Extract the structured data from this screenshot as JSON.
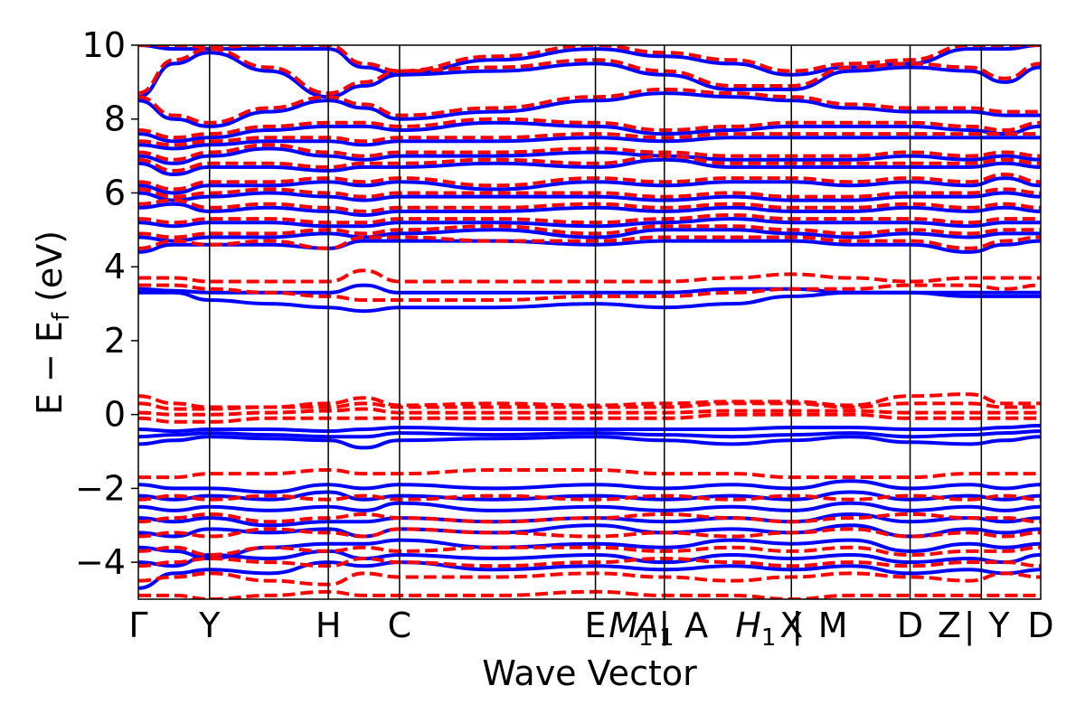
{
  "chart_data": {
    "type": "line",
    "title": "",
    "xlabel": "Wave Vector",
    "ylabel": "E − E",
    "ylabel_sub": "f",
    "ylabel_unit": " (eV)",
    "ylim": [
      -5,
      10
    ],
    "yticks": [
      -4,
      -2,
      0,
      2,
      4,
      6,
      8,
      10
    ],
    "ytick_labels": [
      "−4",
      "−2",
      "0",
      "2",
      "4",
      "6",
      "8",
      "10"
    ],
    "k_path_positions": [
      0,
      0.6,
      1.6,
      2.2,
      3.85,
      4.43,
      5.5,
      6.5,
      7.1,
      7.6
    ],
    "k_labels": [
      {
        "x": 0,
        "label": "Γ"
      },
      {
        "x": 0.6,
        "label": "Y"
      },
      {
        "x": 1.6,
        "label": "H"
      },
      {
        "x": 2.2,
        "label": "C"
      },
      {
        "x": 3.85,
        "label": "E"
      },
      {
        "x": 4.15,
        "label": "M",
        "sub": "1",
        "italic": true
      },
      {
        "x": 4.35,
        "label": "A",
        "sub": "1",
        "italic": true
      },
      {
        "x": 4.43,
        "label": "|"
      },
      {
        "x": 4.7,
        "label": "A"
      },
      {
        "x": 5.2,
        "label": "H",
        "sub": "1",
        "italic": true
      },
      {
        "x": 5.5,
        "label": "X"
      },
      {
        "x": 5.55,
        "label": "|"
      },
      {
        "x": 5.85,
        "label": "M"
      },
      {
        "x": 6.5,
        "label": "D"
      },
      {
        "x": 6.83,
        "label": "Z"
      },
      {
        "x": 7.0,
        "label": "|"
      },
      {
        "x": 7.25,
        "label": "Y"
      },
      {
        "x": 7.6,
        "label": "D"
      }
    ],
    "xlim": [
      0,
      7.6
    ],
    "series": [
      {
        "style": "solid",
        "color": "#0000ff",
        "bands": [
          [
            -4.7,
            -4.3,
            -4.2,
            -4.3,
            -4.0,
            -4.1,
            -4.0,
            -4.2,
            -4.1,
            -4.2,
            -4.1,
            -4.2,
            -4.1,
            -4.3,
            -4.2,
            -4.3,
            -4.2
          ],
          [
            -4.0,
            -4.1,
            -3.8,
            -3.9,
            -3.7,
            -3.9,
            -3.8,
            -3.9,
            -3.8,
            -4.0,
            -3.8,
            -3.9,
            -3.8,
            -4.0,
            -3.9,
            -4.0,
            -3.8
          ],
          [
            -3.6,
            -3.7,
            -3.9,
            -3.6,
            -3.5,
            -3.5,
            -3.4,
            -3.6,
            -3.5,
            -3.6,
            -3.4,
            -3.5,
            -3.4,
            -3.7,
            -3.5,
            -3.6,
            -3.5
          ],
          [
            -3.2,
            -3.3,
            -3.1,
            -3.2,
            -3.1,
            -3.3,
            -3.1,
            -3.2,
            -3.0,
            -3.2,
            -3.1,
            -3.2,
            -3.0,
            -3.3,
            -3.1,
            -3.2,
            -3.1
          ],
          [
            -2.8,
            -2.9,
            -2.8,
            -3.0,
            -2.9,
            -2.9,
            -2.8,
            -2.9,
            -2.8,
            -2.9,
            -2.8,
            -2.9,
            -2.7,
            -2.9,
            -2.8,
            -2.9,
            -2.8
          ],
          [
            -2.5,
            -2.6,
            -2.5,
            -2.6,
            -2.5,
            -2.6,
            -2.4,
            -2.6,
            -2.5,
            -2.6,
            -2.5,
            -2.6,
            -2.4,
            -2.6,
            -2.5,
            -2.6,
            -2.5
          ],
          [
            -2.2,
            -2.3,
            -2.2,
            -2.3,
            -2.1,
            -2.3,
            -2.2,
            -2.3,
            -2.2,
            -2.3,
            -2.2,
            -2.3,
            -2.1,
            -2.3,
            -2.2,
            -2.3,
            -2.2
          ],
          [
            -1.9,
            -2.0,
            -2.0,
            -2.1,
            -1.9,
            -2.0,
            -1.9,
            -2.0,
            -1.9,
            -2.0,
            -1.9,
            -2.0,
            -1.8,
            -2.0,
            -1.9,
            -2.0,
            -1.9
          ],
          [
            -0.8,
            -0.7,
            -0.6,
            -0.65,
            -0.7,
            -0.9,
            -0.7,
            -0.65,
            -0.6,
            -0.7,
            -0.8,
            -0.7,
            -0.6,
            -0.75,
            -0.8,
            -0.7,
            -0.6
          ],
          [
            -0.6,
            -0.55,
            -0.5,
            -0.55,
            -0.6,
            -0.6,
            -0.5,
            -0.55,
            -0.5,
            -0.55,
            -0.6,
            -0.55,
            -0.5,
            -0.6,
            -0.55,
            -0.5,
            -0.45
          ],
          [
            -0.4,
            -0.45,
            -0.4,
            -0.4,
            -0.45,
            -0.4,
            -0.35,
            -0.4,
            -0.4,
            -0.4,
            -0.4,
            -0.35,
            -0.35,
            -0.4,
            -0.4,
            -0.35,
            -0.3
          ],
          [
            3.3,
            3.3,
            3.1,
            3.0,
            2.9,
            2.8,
            2.9,
            2.9,
            3.0,
            2.9,
            3.0,
            3.2,
            3.3,
            3.3,
            3.2,
            3.2,
            3.2
          ],
          [
            3.4,
            3.35,
            3.3,
            3.3,
            3.3,
            3.5,
            3.3,
            3.3,
            3.3,
            3.3,
            3.4,
            3.4,
            3.3,
            3.3,
            3.3,
            3.3,
            3.3
          ],
          [
            4.4,
            4.6,
            4.6,
            4.6,
            4.5,
            4.7,
            4.7,
            4.7,
            4.6,
            4.7,
            4.7,
            4.7,
            4.6,
            4.6,
            4.4,
            4.6,
            4.7
          ],
          [
            4.8,
            4.7,
            4.8,
            4.8,
            4.9,
            4.8,
            4.9,
            5.0,
            4.8,
            5.0,
            5.0,
            4.9,
            4.8,
            4.9,
            4.8,
            4.9,
            4.9
          ],
          [
            5.2,
            5.1,
            5.2,
            5.2,
            5.1,
            5.1,
            5.2,
            5.2,
            5.1,
            5.2,
            5.3,
            5.2,
            5.2,
            5.2,
            5.1,
            5.2,
            5.2
          ],
          [
            5.6,
            5.7,
            5.5,
            5.6,
            5.5,
            5.4,
            5.5,
            5.5,
            5.6,
            5.5,
            5.6,
            5.5,
            5.5,
            5.6,
            5.5,
            5.6,
            5.5
          ],
          [
            6.0,
            5.8,
            5.9,
            6.0,
            5.9,
            5.8,
            5.9,
            5.9,
            5.9,
            5.8,
            5.9,
            5.8,
            5.8,
            5.9,
            5.9,
            6.0,
            5.9
          ],
          [
            6.2,
            6.0,
            6.2,
            6.2,
            6.3,
            6.2,
            6.3,
            6.1,
            6.3,
            6.2,
            6.3,
            6.3,
            6.2,
            6.3,
            6.2,
            6.4,
            6.2
          ],
          [
            6.8,
            6.5,
            6.7,
            6.7,
            6.6,
            6.7,
            6.7,
            6.8,
            6.7,
            6.9,
            6.7,
            6.7,
            6.7,
            6.7,
            6.7,
            6.8,
            6.7
          ],
          [
            7.0,
            6.8,
            7.0,
            7.2,
            7.0,
            6.9,
            7.0,
            7.0,
            7.1,
            7.0,
            6.9,
            6.9,
            6.9,
            7.0,
            6.9,
            7.0,
            6.9
          ],
          [
            7.3,
            7.2,
            7.3,
            7.4,
            7.4,
            7.3,
            7.4,
            7.4,
            7.5,
            7.4,
            7.5,
            7.5,
            7.5,
            7.5,
            7.5,
            7.5,
            7.5
          ],
          [
            7.6,
            7.4,
            7.5,
            7.7,
            7.8,
            7.8,
            7.7,
            7.9,
            7.8,
            7.6,
            7.7,
            7.8,
            7.8,
            7.8,
            7.7,
            7.6,
            7.8
          ],
          [
            8.5,
            8.0,
            7.8,
            8.2,
            8.5,
            8.3,
            8.0,
            8.2,
            8.5,
            8.7,
            8.6,
            8.5,
            8.3,
            8.2,
            8.2,
            8.1,
            8.1
          ],
          [
            8.6,
            9.5,
            9.8,
            9.3,
            8.6,
            8.9,
            9.2,
            9.3,
            9.5,
            9.2,
            8.8,
            8.8,
            9.3,
            9.4,
            9.3,
            9.0,
            9.4
          ],
          [
            10.0,
            9.9,
            9.9,
            9.9,
            9.9,
            9.4,
            9.2,
            9.6,
            9.9,
            9.7,
            9.5,
            9.2,
            9.4,
            9.5,
            9.9,
            9.9,
            10.0
          ]
        ]
      },
      {
        "style": "dashed",
        "color": "#ff0000",
        "bands": [
          [
            -4.9,
            -4.9,
            -5.0,
            -4.9,
            -4.8,
            -4.9,
            -4.9,
            -4.9,
            -4.8,
            -4.9,
            -4.9,
            -5.0,
            -4.9,
            -4.9,
            -4.9,
            -4.9,
            -4.9
          ],
          [
            -4.5,
            -4.4,
            -4.3,
            -4.5,
            -4.6,
            -4.3,
            -4.4,
            -4.4,
            -4.3,
            -4.4,
            -4.5,
            -4.4,
            -4.3,
            -4.4,
            -4.5,
            -4.3,
            -4.4
          ],
          [
            -4.1,
            -4.0,
            -3.9,
            -4.0,
            -4.1,
            -3.9,
            -4.0,
            -4.1,
            -4.0,
            -3.9,
            -4.0,
            -4.1,
            -4.0,
            -4.1,
            -4.0,
            -4.0,
            -4.1
          ],
          [
            -3.7,
            -3.6,
            -3.8,
            -3.6,
            -3.7,
            -3.6,
            -3.7,
            -3.6,
            -3.6,
            -3.7,
            -3.6,
            -3.7,
            -3.6,
            -3.8,
            -3.7,
            -3.7,
            -3.6
          ],
          [
            -3.3,
            -3.2,
            -3.3,
            -3.1,
            -3.2,
            -3.3,
            -3.1,
            -3.2,
            -3.3,
            -3.2,
            -3.3,
            -3.2,
            -3.1,
            -3.3,
            -3.2,
            -3.3,
            -3.2
          ],
          [
            -2.9,
            -2.8,
            -2.7,
            -2.9,
            -2.8,
            -2.7,
            -2.8,
            -2.9,
            -2.8,
            -2.7,
            -2.8,
            -2.9,
            -2.8,
            -2.7,
            -2.8,
            -2.8,
            -2.9
          ],
          [
            -2.3,
            -2.2,
            -2.3,
            -2.2,
            -2.3,
            -2.2,
            -2.3,
            -2.2,
            -2.3,
            -2.2,
            -2.3,
            -2.2,
            -2.3,
            -2.2,
            -2.3,
            -2.2,
            -2.3
          ],
          [
            -1.7,
            -1.7,
            -1.6,
            -1.6,
            -1.5,
            -1.6,
            -1.6,
            -1.5,
            -1.5,
            -1.6,
            -1.6,
            -1.7,
            -1.7,
            -1.7,
            -1.6,
            -1.6,
            -1.6
          ],
          [
            -0.1,
            -0.2,
            -0.2,
            -0.1,
            -0.1,
            -0.1,
            -0.1,
            -0.1,
            -0.1,
            -0.1,
            0.0,
            0.0,
            0.0,
            -0.1,
            -0.1,
            -0.1,
            -0.1
          ],
          [
            0.05,
            0.0,
            0.0,
            0.05,
            0.1,
            0.15,
            0.05,
            0.05,
            0.05,
            0.05,
            0.1,
            0.1,
            0.1,
            0.05,
            0.05,
            0.05,
            0.05
          ],
          [
            0.3,
            0.15,
            0.15,
            0.2,
            0.2,
            0.3,
            0.2,
            0.2,
            0.2,
            0.2,
            0.3,
            0.3,
            0.2,
            0.3,
            0.3,
            0.2,
            0.2
          ],
          [
            0.5,
            0.3,
            0.2,
            0.2,
            0.3,
            0.45,
            0.25,
            0.3,
            0.25,
            0.3,
            0.35,
            0.35,
            0.25,
            0.5,
            0.55,
            0.3,
            0.3
          ],
          [
            3.5,
            3.5,
            3.4,
            3.3,
            3.2,
            3.1,
            3.1,
            3.1,
            3.2,
            3.2,
            3.3,
            3.4,
            3.4,
            3.5,
            3.5,
            3.4,
            3.5
          ],
          [
            3.7,
            3.7,
            3.6,
            3.6,
            3.6,
            3.9,
            3.6,
            3.6,
            3.6,
            3.6,
            3.7,
            3.8,
            3.7,
            3.6,
            3.7,
            3.7,
            3.7
          ],
          [
            4.5,
            4.7,
            4.6,
            4.7,
            4.5,
            4.8,
            4.8,
            4.7,
            4.7,
            4.8,
            4.8,
            4.8,
            4.7,
            4.7,
            4.5,
            4.7,
            4.8
          ],
          [
            4.9,
            4.8,
            4.9,
            4.9,
            5.0,
            4.9,
            5.0,
            5.1,
            4.9,
            5.1,
            5.1,
            5.0,
            4.9,
            5.0,
            4.9,
            5.0,
            5.0
          ],
          [
            5.3,
            5.2,
            5.3,
            5.3,
            5.2,
            5.2,
            5.3,
            5.3,
            5.2,
            5.3,
            5.4,
            5.3,
            5.3,
            5.3,
            5.2,
            5.3,
            5.3
          ],
          [
            5.7,
            5.8,
            5.6,
            5.7,
            5.6,
            5.5,
            5.6,
            5.6,
            5.7,
            5.6,
            5.7,
            5.6,
            5.6,
            5.7,
            5.6,
            5.7,
            5.6
          ],
          [
            6.1,
            5.9,
            6.0,
            6.1,
            6.0,
            5.9,
            6.0,
            6.0,
            6.0,
            5.9,
            6.0,
            5.9,
            5.9,
            6.0,
            6.0,
            6.1,
            6.0
          ],
          [
            6.3,
            6.1,
            6.3,
            6.3,
            6.4,
            6.3,
            6.4,
            6.2,
            6.4,
            6.3,
            6.4,
            6.4,
            6.3,
            6.4,
            6.3,
            6.5,
            6.3
          ],
          [
            6.9,
            6.6,
            6.8,
            6.8,
            6.7,
            6.8,
            6.8,
            6.9,
            6.8,
            7.0,
            6.8,
            6.8,
            6.8,
            6.8,
            6.8,
            6.9,
            6.8
          ],
          [
            7.1,
            6.9,
            7.1,
            7.3,
            7.1,
            7.0,
            7.1,
            7.1,
            7.2,
            7.1,
            7.0,
            7.0,
            7.0,
            7.1,
            7.0,
            7.1,
            7.0
          ],
          [
            7.4,
            7.3,
            7.4,
            7.5,
            7.5,
            7.4,
            7.5,
            7.5,
            7.6,
            7.5,
            7.6,
            7.6,
            7.6,
            7.6,
            7.6,
            7.6,
            7.6
          ],
          [
            7.7,
            7.5,
            7.6,
            7.8,
            7.9,
            7.9,
            7.8,
            8.0,
            7.9,
            7.7,
            7.8,
            7.9,
            7.9,
            7.9,
            7.8,
            7.7,
            7.9
          ],
          [
            8.6,
            8.1,
            7.9,
            8.3,
            8.6,
            8.4,
            8.1,
            8.3,
            8.6,
            8.8,
            8.7,
            8.6,
            8.4,
            8.3,
            8.3,
            8.2,
            8.2
          ],
          [
            8.7,
            9.6,
            9.9,
            9.4,
            8.7,
            9.0,
            9.3,
            9.4,
            9.6,
            9.3,
            8.9,
            8.9,
            9.4,
            9.5,
            9.4,
            9.1,
            9.5
          ],
          [
            10.0,
            10.0,
            9.95,
            10.0,
            10.0,
            9.5,
            9.3,
            9.7,
            10.0,
            9.8,
            9.6,
            9.3,
            9.5,
            9.6,
            10.0,
            10.0,
            10.0
          ]
        ]
      }
    ],
    "band_x": [
      0,
      0.3,
      0.6,
      1.1,
      1.6,
      1.9,
      2.2,
      3.0,
      3.85,
      4.43,
      5.0,
      5.5,
      6.0,
      6.5,
      7.0,
      7.3,
      7.6
    ],
    "grid": false,
    "legend": "none"
  }
}
